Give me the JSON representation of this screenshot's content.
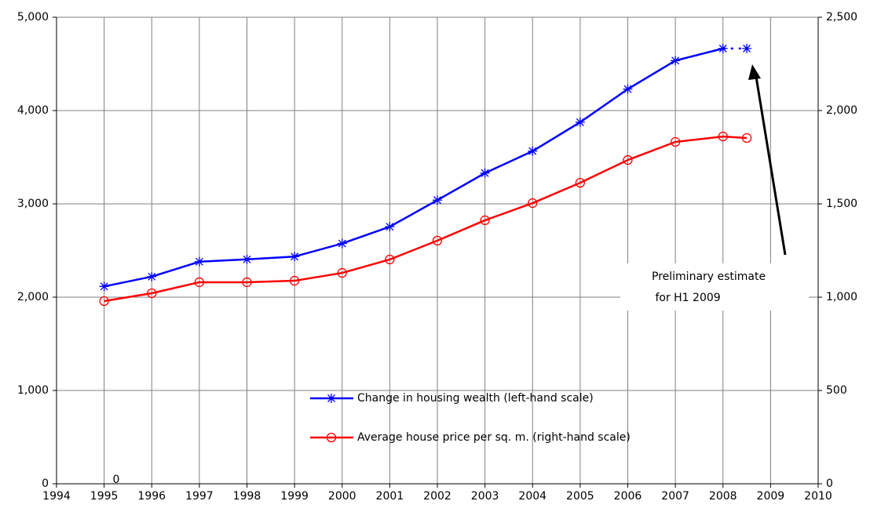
{
  "chart_data": {
    "type": "line",
    "x": [
      1995,
      1996,
      1997,
      1998,
      1999,
      2000,
      2001,
      2002,
      2003,
      2004,
      2005,
      2006,
      2007,
      2008,
      2008.5
    ],
    "series": [
      {
        "name": "Change in housing wealth (left-hand scale)",
        "color": "#0000ff",
        "marker": "asterisk",
        "dotted_last_segment": true,
        "values": [
          2115,
          2220,
          2380,
          2405,
          2435,
          2575,
          2755,
          3040,
          3330,
          3565,
          3875,
          4230,
          4535,
          4665,
          4665
        ]
      },
      {
        "name": "Average house price per sq. m. (right-hand scale)",
        "color": "#ff0000",
        "marker": "circle",
        "axis": "y2",
        "values": [
          979,
          1021,
          1080,
          1080,
          1088,
          1130,
          1202,
          1303,
          1412,
          1504,
          1613,
          1735,
          1832,
          1861,
          1853
        ]
      }
    ],
    "xlim": [
      1994,
      2010
    ],
    "xticks": [
      1994,
      1995,
      1996,
      1997,
      1998,
      1999,
      2000,
      2001,
      2002,
      2003,
      2004,
      2005,
      2006,
      2007,
      2008,
      2009,
      2010
    ],
    "ylim": [
      0,
      5000
    ],
    "yticks": [
      0,
      {
        "value": 1000,
        "label": "1,000"
      },
      {
        "value": 2000,
        "label": "2,000"
      },
      {
        "value": 3000,
        "label": "3,000"
      },
      {
        "value": 4000,
        "label": "4,000"
      },
      {
        "value": 5000,
        "label": "5,000"
      }
    ],
    "y2lim": [
      0,
      2500
    ],
    "y2ticks": [
      0,
      500,
      {
        "value": 1000,
        "label": "1,000"
      },
      {
        "value": 1500,
        "label": "1,500"
      },
      {
        "value": 2000,
        "label": "2,000"
      },
      {
        "value": 2500,
        "label": "2,500"
      }
    ],
    "grid": true,
    "annotations": [
      {
        "lines": [
          "Preliminary estimate",
          " for H1 2009"
        ]
      },
      {
        "lines": [
          "0"
        ]
      }
    ]
  }
}
